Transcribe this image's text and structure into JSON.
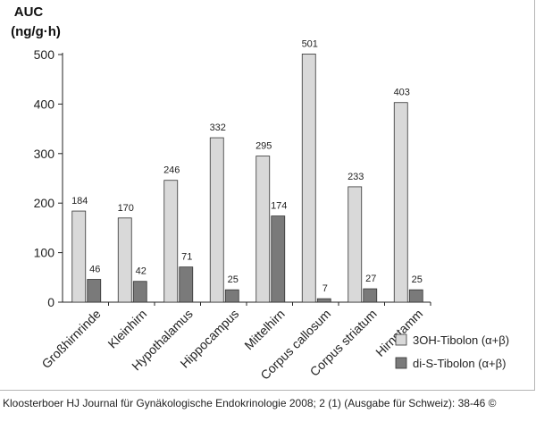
{
  "chart_data": {
    "type": "bar",
    "ylabel_line1": "AUC",
    "ylabel_line2": "(ng/g·h)",
    "ylim": [
      0,
      500
    ],
    "yticks": [
      0,
      100,
      200,
      300,
      400,
      500
    ],
    "categories": [
      "Großhirnrinde",
      "Kleinhirn",
      "Hypothalamus",
      "Hippocampus",
      "Mittelhirn",
      "Corpus callosum",
      "Corpus striatum",
      "Hirnstamm"
    ],
    "series": [
      {
        "name": "3OH-Tibolon (α+β)",
        "color": "#d9d9d9",
        "values": [
          184,
          170,
          246,
          332,
          295,
          501,
          233,
          403
        ]
      },
      {
        "name": "di-S-Tibolon (α+β)",
        "color": "#7a7a7a",
        "values": [
          46,
          42,
          71,
          25,
          174,
          7,
          27,
          25
        ]
      }
    ],
    "grid": false,
    "legend_position": "bottom-right"
  },
  "caption": "Kloosterboer HJ Journal für Gynäkologische Endokrinologie 2008; 2 (1) (Ausgabe für Schweiz): 38-46 ©"
}
